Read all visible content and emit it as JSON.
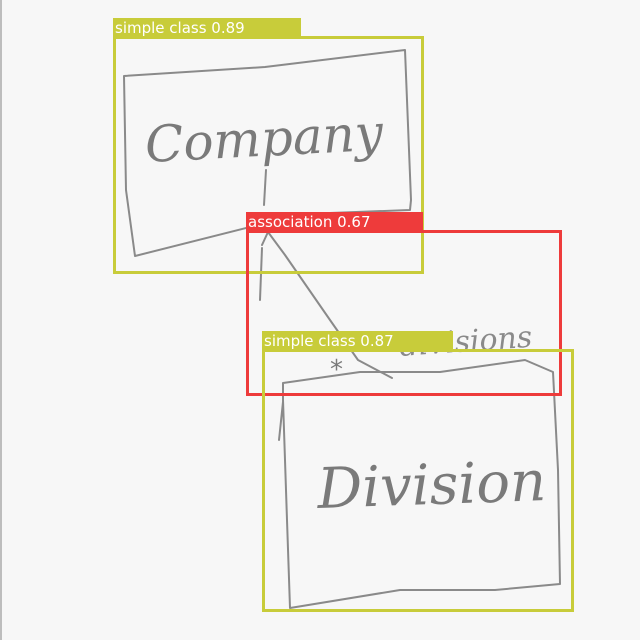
{
  "sketch": {
    "company_text": "Company",
    "division_text": "Division",
    "role_text": "divisions",
    "multiplicity_text": "*"
  },
  "detections": [
    {
      "label": "simple class 0.89",
      "category": "simple class",
      "confidence": 0.89,
      "color": "#c8cc3a"
    },
    {
      "label": "association 0.67",
      "category": "association",
      "confidence": 0.67,
      "color": "#ee3b3b"
    },
    {
      "label": "simple class 0.87",
      "category": "simple class",
      "confidence": 0.87,
      "color": "#c8cc3a"
    }
  ],
  "colors": {
    "simple_class": "#c8cc3a",
    "association": "#ee3b3b",
    "pencil": "#8a8a8a",
    "paper": "#f7f7f7"
  }
}
